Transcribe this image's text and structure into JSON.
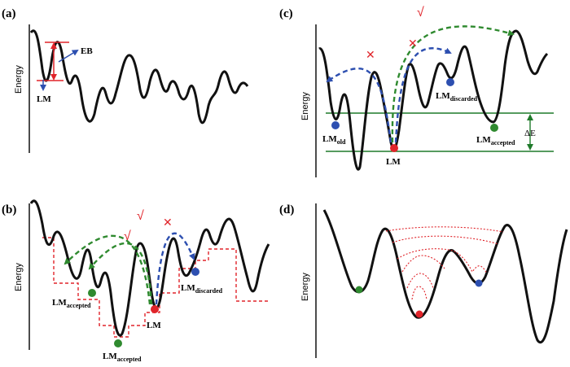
{
  "colors": {
    "curve": "#111111",
    "red": "#e0242a",
    "green": "#2f8a2f",
    "blue": "#2d4fb0",
    "darkgreen": "#1f7a2a"
  },
  "panels": {
    "a": {
      "label": "(a)",
      "y_axis_label": "Energy",
      "eb_label": "EB",
      "lm_label": "LM"
    },
    "b": {
      "label": "(b)",
      "y_axis_label": "Energy",
      "lm_accepted_left": {
        "main": "LM",
        "sub": "accepted"
      },
      "lm_accepted_bottom": {
        "main": "LM",
        "sub": "accepted"
      },
      "lm_center": "LM",
      "lm_discarded": {
        "main": "LM",
        "sub": "discarded"
      },
      "check_mark": "√",
      "cross_mark": "✕"
    },
    "c": {
      "label": "(c)",
      "y_axis_label": "Energy",
      "lm_old": {
        "main": "LM",
        "sub": "old"
      },
      "lm_center": "LM",
      "lm_discarded": {
        "main": "LM",
        "sub": "discarded"
      },
      "lm_accepted": {
        "main": "LM",
        "sub": "accepted"
      },
      "delta_e": "ΔE",
      "check_mark": "√",
      "cross_mark": "✕"
    },
    "d": {
      "label": "(d)",
      "y_axis_label": "Energy"
    }
  }
}
